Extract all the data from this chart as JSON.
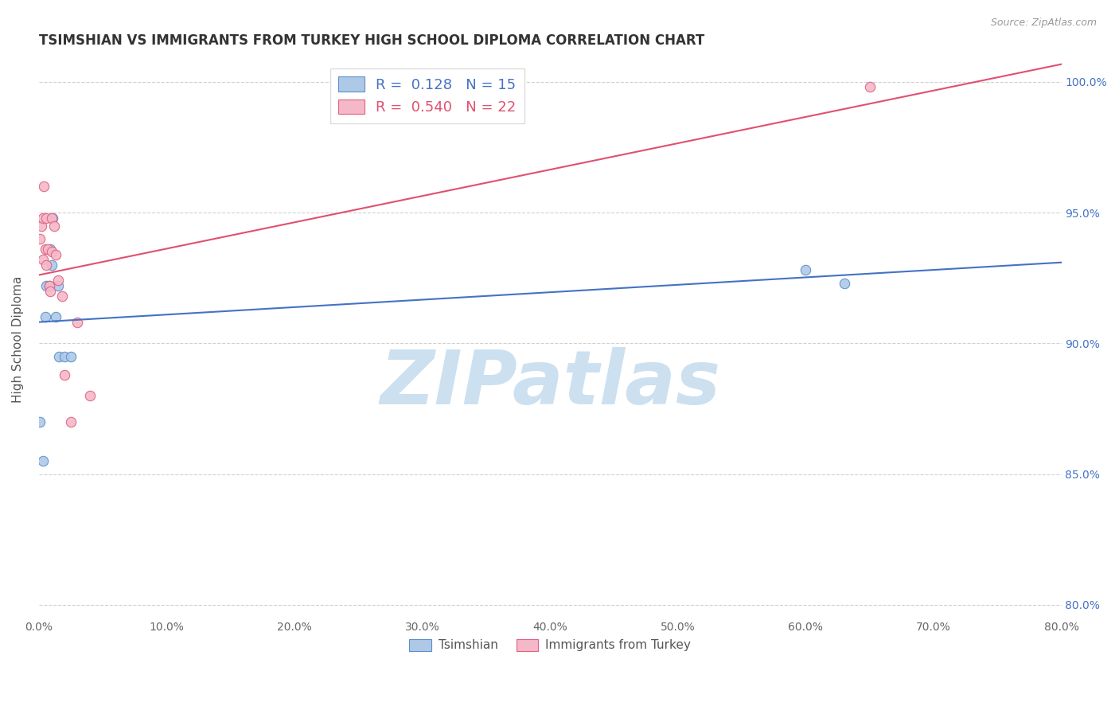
{
  "title": "TSIMSHIAN VS IMMIGRANTS FROM TURKEY HIGH SCHOOL DIPLOMA CORRELATION CHART",
  "source": "Source: ZipAtlas.com",
  "ylabel": "High School Diploma",
  "xlim": [
    0.0,
    0.8
  ],
  "ylim": [
    0.795,
    1.008
  ],
  "xticks": [
    0.0,
    0.1,
    0.2,
    0.3,
    0.4,
    0.5,
    0.6,
    0.7,
    0.8
  ],
  "xticklabels": [
    "0.0%",
    "10.0%",
    "20.0%",
    "30.0%",
    "40.0%",
    "50.0%",
    "60.0%",
    "70.0%",
    "80.0%"
  ],
  "yticks": [
    0.8,
    0.85,
    0.9,
    0.95,
    1.0
  ],
  "yticklabels": [
    "80.0%",
    "85.0%",
    "90.0%",
    "95.0%",
    "100.0%"
  ],
  "background_color": "#ffffff",
  "grid_color": "#cccccc",
  "watermark_text": "ZIPatlas",
  "watermark_color": "#cce0f0",
  "blue_fill": "#aec9e8",
  "blue_edge": "#5b8fc9",
  "pink_fill": "#f5b8c8",
  "pink_edge": "#e06080",
  "blue_line_color": "#4472c4",
  "pink_line_color": "#e05070",
  "R_blue": 0.128,
  "N_blue": 15,
  "R_pink": 0.54,
  "N_pink": 22,
  "blue_points_x": [
    0.001,
    0.003,
    0.005,
    0.006,
    0.008,
    0.009,
    0.01,
    0.011,
    0.013,
    0.015,
    0.016,
    0.02,
    0.025,
    0.6,
    0.63
  ],
  "blue_points_y": [
    0.87,
    0.855,
    0.91,
    0.922,
    0.922,
    0.936,
    0.93,
    0.948,
    0.91,
    0.922,
    0.895,
    0.895,
    0.895,
    0.928,
    0.923
  ],
  "pink_points_x": [
    0.001,
    0.002,
    0.003,
    0.003,
    0.004,
    0.005,
    0.006,
    0.006,
    0.007,
    0.008,
    0.009,
    0.01,
    0.01,
    0.012,
    0.013,
    0.015,
    0.018,
    0.02,
    0.025,
    0.03,
    0.04,
    0.65
  ],
  "pink_points_y": [
    0.94,
    0.945,
    0.932,
    0.948,
    0.96,
    0.936,
    0.948,
    0.93,
    0.936,
    0.922,
    0.92,
    0.948,
    0.935,
    0.945,
    0.934,
    0.924,
    0.918,
    0.888,
    0.87,
    0.908,
    0.88,
    0.998
  ],
  "legend_label_blue": "Tsimshian",
  "legend_label_pink": "Immigrants from Turkey",
  "marker_size": 80
}
